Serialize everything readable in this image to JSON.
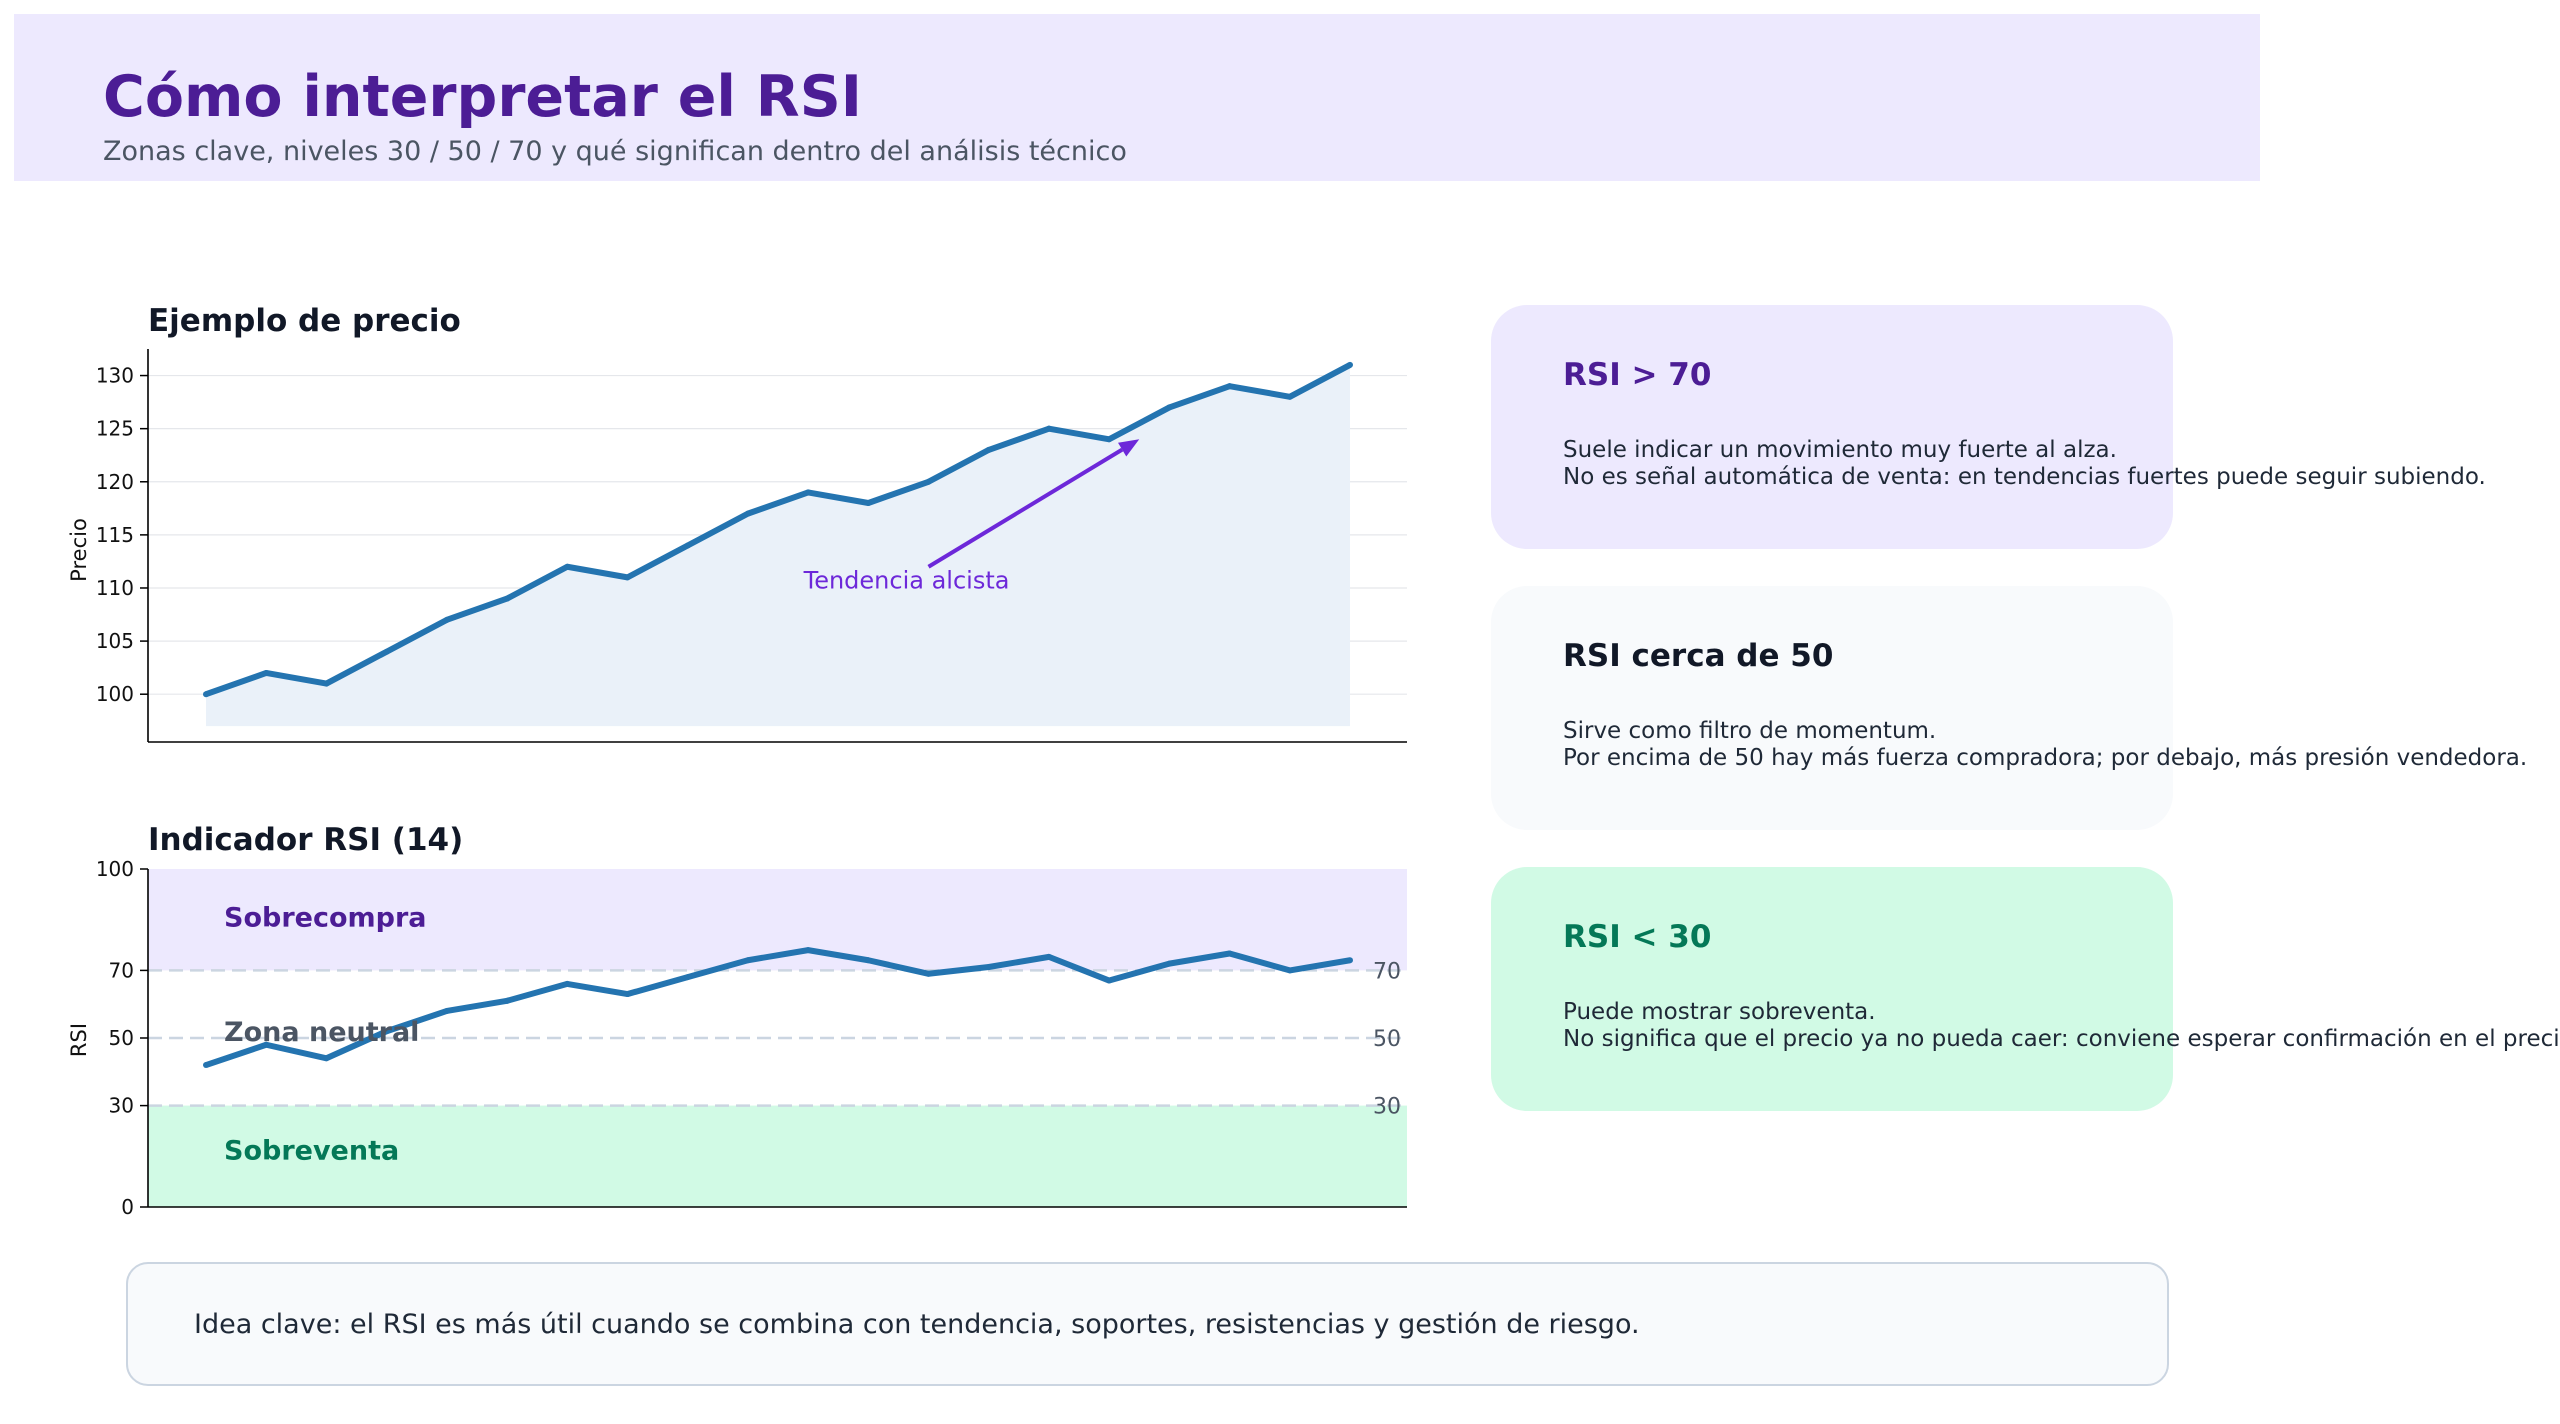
{
  "header": {
    "title": "Cómo interpretar el RSI",
    "subtitle": "Zonas clave, niveles 30 / 50 / 70 y qué significan dentro del análisis técnico"
  },
  "colors": {
    "header_bg": "#ede9fe",
    "accent_purple": "#4c1d95",
    "line_blue": "#2474b0",
    "arrow_purple": "#6d28d9",
    "overbought_zone": "#ede9fe",
    "oversold_zone": "#d1fae5",
    "oversold_text": "#047857"
  },
  "chart_data": [
    {
      "type": "area",
      "title": "Ejemplo de precio",
      "xlabel": "",
      "ylabel": "Precio",
      "y_ticks": [
        "100",
        "105",
        "110",
        "115",
        "120",
        "125",
        "130"
      ],
      "ylim": [
        95.5,
        132.5
      ],
      "x": [
        0,
        1,
        2,
        3,
        4,
        5,
        6,
        7,
        8,
        9,
        10,
        11,
        12,
        13,
        14,
        15,
        16,
        17,
        18,
        19
      ],
      "values": [
        100,
        102,
        101,
        104,
        107,
        109,
        112,
        111,
        114,
        117,
        119,
        118,
        120,
        123,
        125,
        124,
        127,
        129,
        128,
        131
      ],
      "area_baseline": 97,
      "grid": true,
      "annotation": {
        "text": "Tendencia alcista",
        "from": [
          12,
          112
        ],
        "to": [
          15.5,
          124
        ]
      }
    },
    {
      "type": "line",
      "title": "Indicador RSI (14)",
      "xlabel": "",
      "ylabel": "RSI",
      "y_ticks": [
        "0",
        "30",
        "50",
        "70",
        "100"
      ],
      "ylim": [
        0,
        100
      ],
      "x": [
        0,
        1,
        2,
        3,
        4,
        5,
        6,
        7,
        8,
        9,
        10,
        11,
        12,
        13,
        14,
        15,
        16,
        17,
        18,
        19
      ],
      "values": [
        42,
        48,
        44,
        52,
        58,
        61,
        66,
        63,
        68,
        73,
        76,
        73,
        69,
        71,
        74,
        67,
        72,
        75,
        70,
        73
      ],
      "levels": [
        {
          "label": "70",
          "value": 70
        },
        {
          "label": "50",
          "value": 50
        },
        {
          "label": "30",
          "value": 30
        }
      ],
      "zones": [
        {
          "label": "Sobrecompra",
          "from": 70,
          "to": 100
        },
        {
          "label": "Zona neutral",
          "from": 30,
          "to": 70
        },
        {
          "label": "Sobreventa",
          "from": 0,
          "to": 30
        }
      ]
    }
  ],
  "cards": [
    {
      "title": "RSI > 70",
      "lines": [
        "Suele indicar un movimiento muy fuerte al alza.",
        "No es señal automática de venta: en tendencias fuertes puede seguir subiendo."
      ]
    },
    {
      "title": "RSI cerca de 50",
      "lines": [
        "Sirve como filtro de momentum.",
        "Por encima de 50 hay más fuerza compradora; por debajo, más presión vendedora."
      ]
    },
    {
      "title": "RSI < 30",
      "lines": [
        "Puede mostrar sobreventa.",
        "No significa que el precio ya no pueda caer: conviene esperar confirmación en el precio."
      ]
    }
  ],
  "footer": {
    "text": "Idea clave: el RSI es más útil cuando se combina con tendencia, soportes, resistencias y gestión de riesgo."
  }
}
